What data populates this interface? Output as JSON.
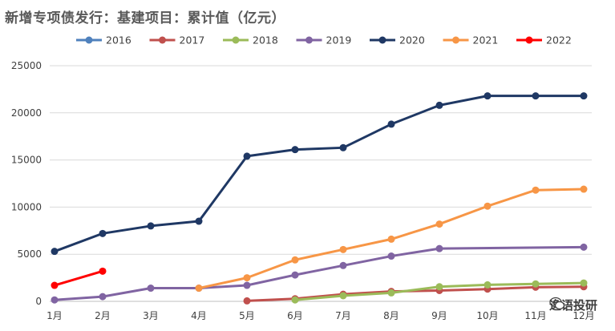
{
  "chart_data": {
    "type": "line",
    "title": "新增专项债发行：基建项目：累计值（亿元）",
    "categories": [
      "1月",
      "2月",
      "3月",
      "4月",
      "5月",
      "6月",
      "7月",
      "8月",
      "9月",
      "10月",
      "11月",
      "12月"
    ],
    "ylim": [
      0,
      25000
    ],
    "yticks": [
      0,
      5000,
      10000,
      15000,
      20000,
      25000
    ],
    "grid": "horizontal",
    "legend": "top",
    "series": [
      {
        "name": "2016",
        "color": "#4f81bd",
        "values": [
          null,
          null,
          null,
          null,
          null,
          null,
          null,
          null,
          null,
          null,
          null,
          null
        ]
      },
      {
        "name": "2017",
        "color": "#c0504d",
        "values": [
          null,
          null,
          null,
          null,
          50,
          280,
          750,
          1050,
          1150,
          1300,
          1500,
          1550
        ]
      },
      {
        "name": "2018",
        "color": "#9bbb59",
        "values": [
          null,
          null,
          null,
          null,
          null,
          150,
          600,
          900,
          1550,
          1750,
          1850,
          1950
        ]
      },
      {
        "name": "2019",
        "color": "#8064a2",
        "values": [
          150,
          500,
          1400,
          1400,
          1700,
          2800,
          3800,
          4800,
          5600,
          null,
          null,
          5750
        ]
      },
      {
        "name": "2020",
        "color": "#1f3864",
        "values": [
          5300,
          7200,
          8000,
          8500,
          15400,
          16100,
          16300,
          18800,
          20800,
          21800,
          21800,
          21800
        ]
      },
      {
        "name": "2021",
        "color": "#f79646",
        "values": [
          null,
          null,
          null,
          1400,
          2500,
          4400,
          5500,
          6600,
          8200,
          10100,
          11800,
          11900
        ]
      },
      {
        "name": "2022",
        "color": "#ff0000",
        "values": [
          1700,
          3200,
          null,
          null,
          null,
          null,
          null,
          null,
          null,
          null,
          null,
          null
        ]
      }
    ]
  },
  "watermark": {
    "icon": "wechat-icon",
    "text": "逸语投研"
  }
}
